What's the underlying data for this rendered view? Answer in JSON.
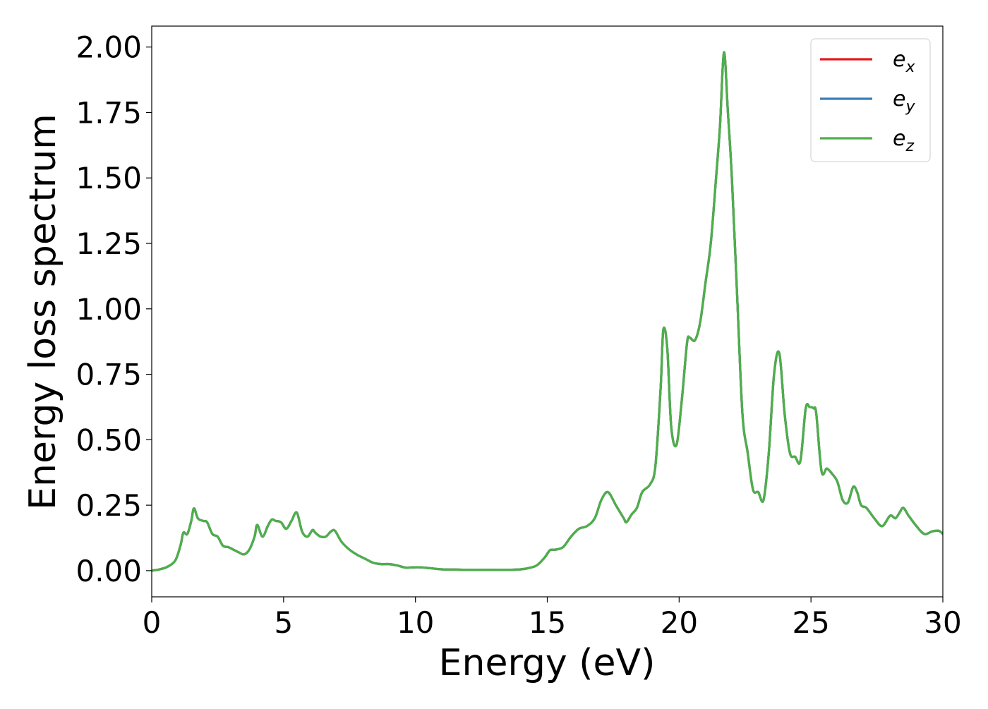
{
  "chart_data": {
    "type": "line",
    "title": "",
    "xlabel": "Energy (eV)",
    "ylabel": "Energy loss spectrum",
    "xlim": [
      0,
      30
    ],
    "ylim": [
      -0.1,
      2.08
    ],
    "xticks": [
      0,
      5,
      10,
      15,
      20,
      25,
      30
    ],
    "xtick_labels": [
      "0",
      "5",
      "10",
      "15",
      "20",
      "25",
      "30"
    ],
    "yticks": [
      0.0,
      0.25,
      0.5,
      0.75,
      1.0,
      1.25,
      1.5,
      1.75,
      2.0
    ],
    "ytick_labels": [
      "0.00",
      "0.25",
      "0.50",
      "0.75",
      "1.00",
      "1.25",
      "1.50",
      "1.75",
      "2.00"
    ],
    "grid": false,
    "legend_position": "top-right",
    "x": [
      0,
      0.3,
      0.6,
      0.9,
      1.1,
      1.2,
      1.35,
      1.5,
      1.6,
      1.75,
      1.95,
      2.1,
      2.3,
      2.5,
      2.7,
      2.9,
      3.1,
      3.3,
      3.5,
      3.7,
      3.9,
      4.0,
      4.2,
      4.4,
      4.55,
      4.7,
      4.9,
      5.1,
      5.3,
      5.5,
      5.7,
      5.9,
      6.1,
      6.2,
      6.4,
      6.6,
      6.8,
      6.95,
      7.2,
      7.5,
      7.8,
      8.1,
      8.4,
      8.7,
      9.0,
      9.3,
      9.6,
      9.8,
      10.1,
      10.5,
      11.0,
      11.5,
      12.0,
      12.5,
      13.0,
      13.5,
      14.0,
      14.3,
      14.6,
      14.9,
      15.1,
      15.3,
      15.6,
      15.9,
      16.2,
      16.5,
      16.8,
      17.05,
      17.3,
      17.6,
      17.9,
      18.0,
      18.2,
      18.4,
      18.6,
      18.9,
      19.1,
      19.3,
      19.4,
      19.55,
      19.7,
      19.9,
      20.1,
      20.3,
      20.4,
      20.6,
      20.8,
      21.0,
      21.2,
      21.4,
      21.55,
      21.7,
      21.85,
      22.0,
      22.2,
      22.4,
      22.6,
      22.8,
      23.0,
      23.2,
      23.4,
      23.6,
      23.8,
      24.0,
      24.2,
      24.4,
      24.6,
      24.8,
      24.95,
      25.1,
      25.2,
      25.4,
      25.6,
      25.8,
      26.0,
      26.2,
      26.4,
      26.6,
      26.75,
      26.9,
      27.1,
      27.4,
      27.7,
      28.0,
      28.2,
      28.35,
      28.5,
      28.7,
      29.0,
      29.3,
      29.6,
      29.85,
      30.0
    ],
    "y": [
      0.0,
      0.005,
      0.015,
      0.04,
      0.1,
      0.145,
      0.14,
      0.19,
      0.238,
      0.2,
      0.19,
      0.185,
      0.14,
      0.13,
      0.095,
      0.09,
      0.08,
      0.07,
      0.062,
      0.08,
      0.13,
      0.175,
      0.13,
      0.17,
      0.195,
      0.19,
      0.185,
      0.16,
      0.19,
      0.222,
      0.15,
      0.13,
      0.155,
      0.145,
      0.13,
      0.13,
      0.15,
      0.152,
      0.11,
      0.08,
      0.06,
      0.045,
      0.03,
      0.025,
      0.025,
      0.02,
      0.012,
      0.012,
      0.013,
      0.01,
      0.005,
      0.004,
      0.003,
      0.003,
      0.003,
      0.003,
      0.005,
      0.01,
      0.02,
      0.05,
      0.078,
      0.08,
      0.09,
      0.13,
      0.16,
      0.17,
      0.2,
      0.27,
      0.3,
      0.25,
      0.2,
      0.185,
      0.215,
      0.24,
      0.3,
      0.33,
      0.4,
      0.7,
      0.92,
      0.85,
      0.55,
      0.48,
      0.65,
      0.87,
      0.89,
      0.88,
      0.95,
      1.1,
      1.25,
      1.5,
      1.7,
      1.98,
      1.75,
      1.5,
      1.05,
      0.6,
      0.45,
      0.31,
      0.3,
      0.27,
      0.45,
      0.75,
      0.83,
      0.6,
      0.45,
      0.435,
      0.42,
      0.62,
      0.625,
      0.62,
      0.6,
      0.38,
      0.39,
      0.37,
      0.34,
      0.27,
      0.26,
      0.32,
      0.3,
      0.25,
      0.24,
      0.2,
      0.17,
      0.21,
      0.2,
      0.22,
      0.24,
      0.21,
      0.17,
      0.14,
      0.15,
      0.152,
      0.14
    ],
    "series": [
      {
        "name": "e_x",
        "label_main": "e",
        "label_sub": "x",
        "color": "#e41a1c"
      },
      {
        "name": "e_y",
        "label_main": "e",
        "label_sub": "y",
        "color": "#377eb8"
      },
      {
        "name": "e_z",
        "label_main": "e",
        "label_sub": "z",
        "color": "#4daf4a"
      }
    ],
    "note_identical_curves": true
  }
}
